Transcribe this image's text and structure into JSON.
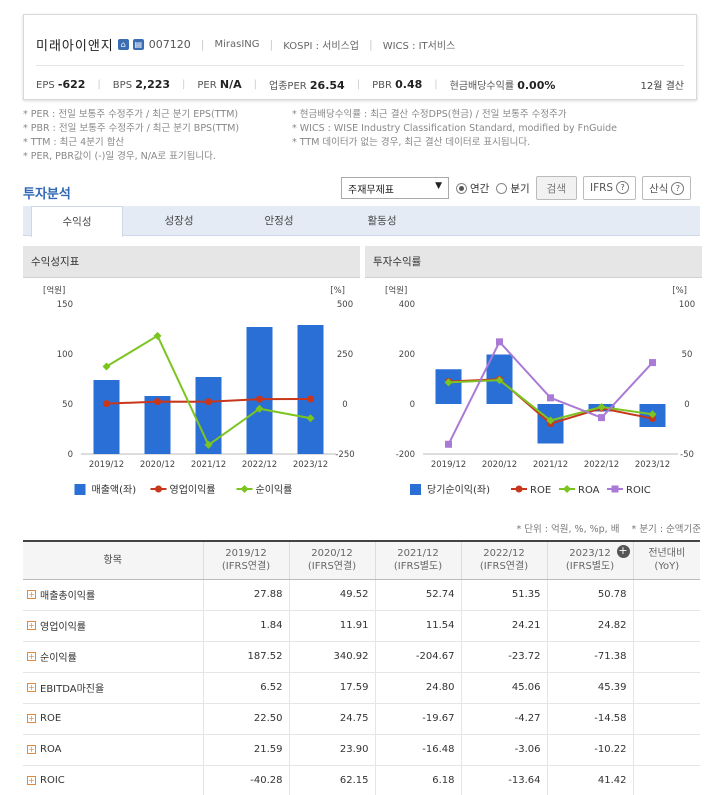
{
  "company": {
    "name": "미래아이앤지",
    "code": "007120",
    "exchange_code": "MirasING",
    "market": "KOSPI : 서비스업",
    "wics": "WICS : IT서비스"
  },
  "metrics": [
    {
      "label": "EPS",
      "value": "-622"
    },
    {
      "label": "BPS",
      "value": "2,223"
    },
    {
      "label": "PER",
      "value": "N/A"
    },
    {
      "label": "업종PER",
      "value": "26.54"
    },
    {
      "label": "PBR",
      "value": "0.48"
    },
    {
      "label": "현금배당수익률",
      "value": "0.00%"
    }
  ],
  "fiscal_label": "12월 결산",
  "notes_left": [
    "* PER : 전일 보통주 수정주가 / 최근 분기 EPS(TTM)",
    "* PBR : 전일 보통주 수정주가 / 최근 분기 BPS(TTM)",
    "* TTM : 최근 4분기 합산",
    "* PER, PBR값이 (-)일 경우, N/A로 표기됩니다."
  ],
  "notes_right": [
    "* 현금배당수익률 : 최근 결산 수정DPS(현금) / 전일 보통주 수정주가",
    "* WICS : WISE Industry Classification Standard, modified by FnGuide",
    "* TTM 데이터가 없는 경우, 최근 결산 데이터로 표시됩니다."
  ],
  "section": {
    "title": "투자분석",
    "select_value": "주재무제표",
    "radio_annual": "연간",
    "radio_quarter": "분기",
    "search_button": "검색",
    "ifrs_button": "IFRS",
    "formula_button": "산식"
  },
  "tabs": [
    "수익성",
    "성장성",
    "안정성",
    "활동성"
  ],
  "charts_meta": {
    "left_title": "수익성지표",
    "right_title": "투자수익률"
  },
  "chart_data": [
    {
      "type": "bar",
      "title": "수익성지표",
      "categories": [
        "2019/12",
        "2020/12",
        "2021/12",
        "2022/12",
        "2023/12"
      ],
      "y_left_unit": "[억원]",
      "y_right_unit": "[%]",
      "y_left_ticks": [
        "150",
        "100",
        "50",
        "0"
      ],
      "y_right_ticks": [
        "500",
        "250",
        "0",
        "-250"
      ],
      "ylim_left": [
        0,
        150
      ],
      "ylim_right": [
        -250,
        500
      ],
      "series": [
        {
          "name": "매출액(좌)",
          "type": "bar",
          "axis": "left",
          "color": "#2a6fd6",
          "values": [
            74,
            58,
            77,
            127,
            129
          ]
        },
        {
          "name": "영업이익률",
          "type": "line",
          "axis": "right",
          "color": "#c8371b",
          "values": [
            1.84,
            11.91,
            11.54,
            24.21,
            24.82
          ]
        },
        {
          "name": "순이익률",
          "type": "line",
          "axis": "right",
          "color": "#7cc520",
          "values": [
            187.52,
            340.92,
            -204.67,
            -23.72,
            -71.38
          ]
        }
      ]
    },
    {
      "type": "bar",
      "title": "투자수익률",
      "categories": [
        "2019/12",
        "2020/12",
        "2021/12",
        "2022/12",
        "2023/12"
      ],
      "y_left_unit": "[억원]",
      "y_right_unit": "[%]",
      "y_left_ticks": [
        "400",
        "200",
        "0",
        "-200"
      ],
      "y_right_ticks": [
        "100",
        "50",
        "0",
        "-50"
      ],
      "ylim_left": [
        -200,
        400
      ],
      "ylim_right": [
        -50,
        100
      ],
      "series": [
        {
          "name": "당기순이익(좌)",
          "type": "bar",
          "axis": "left",
          "color": "#2a6fd6",
          "values": [
            139,
            198,
            -158,
            -30,
            -92
          ]
        },
        {
          "name": "ROE",
          "type": "line",
          "axis": "right",
          "color": "#c8371b",
          "values": [
            22.5,
            24.75,
            -19.67,
            -4.27,
            -14.58
          ]
        },
        {
          "name": "ROA",
          "type": "line",
          "axis": "right",
          "color": "#7cc520",
          "values": [
            21.59,
            23.9,
            -16.48,
            -3.06,
            -10.22
          ]
        },
        {
          "name": "ROIC",
          "type": "line",
          "axis": "right",
          "color": "#a97ad6",
          "values": [
            -40.28,
            62.15,
            6.18,
            -13.64,
            41.42
          ]
        }
      ]
    }
  ],
  "table": {
    "unit_note": "* 단위 : 억원, %, %p, 배",
    "quarter_note": "* 분기 : 순액기준",
    "headers": [
      {
        "line1": "항목",
        "line2": ""
      },
      {
        "line1": "2019/12",
        "line2": "(IFRS연결)"
      },
      {
        "line1": "2020/12",
        "line2": "(IFRS연결)"
      },
      {
        "line1": "2021/12",
        "line2": "(IFRS별도)"
      },
      {
        "line1": "2022/12",
        "line2": "(IFRS연결)"
      },
      {
        "line1": "2023/12",
        "line2": "(IFRS별도)"
      },
      {
        "line1": "전년대비",
        "line2": "(YoY)"
      }
    ],
    "rows": [
      {
        "label": "매출총이익률",
        "values": [
          "27.88",
          "49.52",
          "52.74",
          "51.35",
          "50.78",
          ""
        ]
      },
      {
        "label": "영업이익률",
        "values": [
          "1.84",
          "11.91",
          "11.54",
          "24.21",
          "24.82",
          ""
        ]
      },
      {
        "label": "순이익률",
        "values": [
          "187.52",
          "340.92",
          "-204.67",
          "-23.72",
          "-71.38",
          ""
        ]
      },
      {
        "label": "EBITDA마진율",
        "values": [
          "6.52",
          "17.59",
          "24.80",
          "45.06",
          "45.39",
          ""
        ]
      },
      {
        "label": "ROE",
        "values": [
          "22.50",
          "24.75",
          "-19.67",
          "-4.27",
          "-14.58",
          ""
        ]
      },
      {
        "label": "ROA",
        "values": [
          "21.59",
          "23.90",
          "-16.48",
          "-3.06",
          "-10.22",
          ""
        ]
      },
      {
        "label": "ROIC",
        "values": [
          "-40.28",
          "62.15",
          "6.18",
          "-13.64",
          "41.42",
          ""
        ]
      }
    ]
  }
}
